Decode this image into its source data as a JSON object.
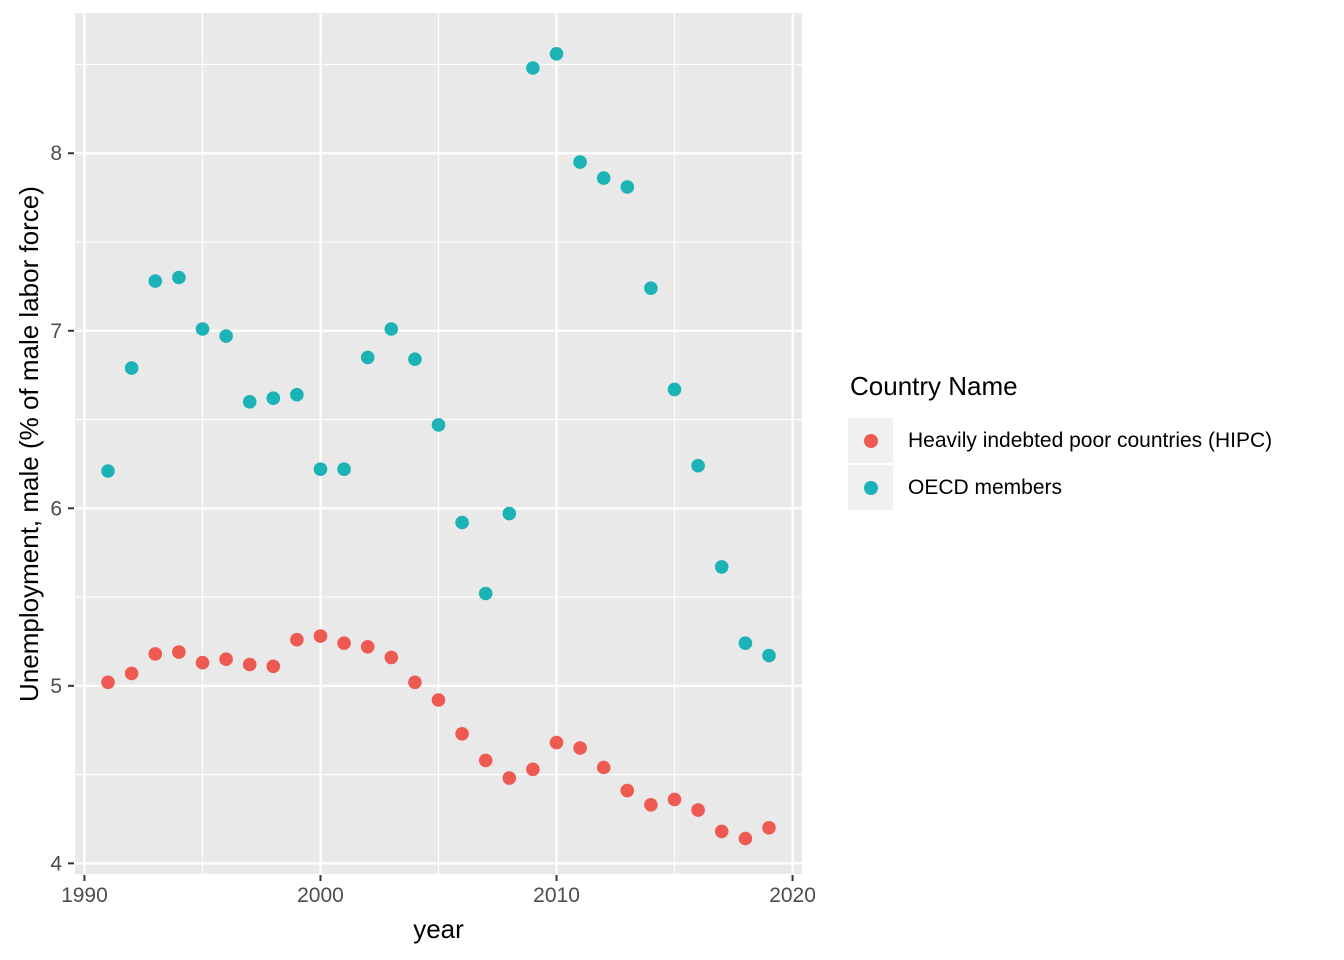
{
  "chart_data": {
    "type": "scatter",
    "title": "",
    "xlabel": "year",
    "ylabel": "Unemployment, male (% of male labor force)",
    "x_domain": [
      1989.6,
      2020.4
    ],
    "y_domain": [
      3.94,
      8.79
    ],
    "x_major_ticks": [
      1990,
      2000,
      2010,
      2020
    ],
    "x_minor_gridlines": [
      1995,
      2005,
      2015
    ],
    "y_major_ticks": [
      4,
      5,
      6,
      7,
      8
    ],
    "y_minor_gridlines": [
      4.5,
      5.5,
      6.5,
      7.5,
      8.5
    ],
    "grid": "white major and minor gridlines on gray panel",
    "legend_position": "right-middle",
    "x": [
      1991,
      1992,
      1993,
      1994,
      1995,
      1996,
      1997,
      1998,
      1999,
      2000,
      2001,
      2002,
      2003,
      2004,
      2005,
      2006,
      2007,
      2008,
      2009,
      2010,
      2011,
      2012,
      2013,
      2014,
      2015,
      2016,
      2017,
      2018,
      2019
    ],
    "series": [
      {
        "name": "Heavily indebted poor countries (HIPC)",
        "color": "#EE5A52",
        "values": [
          5.02,
          5.07,
          5.18,
          5.19,
          5.13,
          5.15,
          5.12,
          5.11,
          5.26,
          5.28,
          5.24,
          5.22,
          5.16,
          5.02,
          4.92,
          4.73,
          4.58,
          4.48,
          4.53,
          4.68,
          4.65,
          4.54,
          4.41,
          4.33,
          4.36,
          4.3,
          4.18,
          4.14,
          4.2
        ]
      },
      {
        "name": "OECD members",
        "color": "#1CB3B7",
        "values": [
          6.21,
          6.79,
          7.28,
          7.3,
          7.01,
          6.97,
          6.6,
          6.62,
          6.64,
          6.22,
          6.22,
          6.85,
          7.01,
          6.84,
          6.47,
          5.92,
          5.52,
          5.97,
          8.48,
          8.56,
          7.95,
          7.86,
          7.81,
          7.24,
          6.67,
          6.24,
          5.67,
          5.24,
          5.17
        ]
      }
    ]
  },
  "legend": {
    "title": "Country Name"
  },
  "colors": {
    "page_background": "#FFFFFF",
    "panel_background": "#E9E9E9",
    "gridline": "#FFFFFF",
    "tick_mark": "#333333",
    "tick_label": "#4D4D4D",
    "axis_title": "#000000",
    "legend_key_background": "#F0F0F0"
  }
}
